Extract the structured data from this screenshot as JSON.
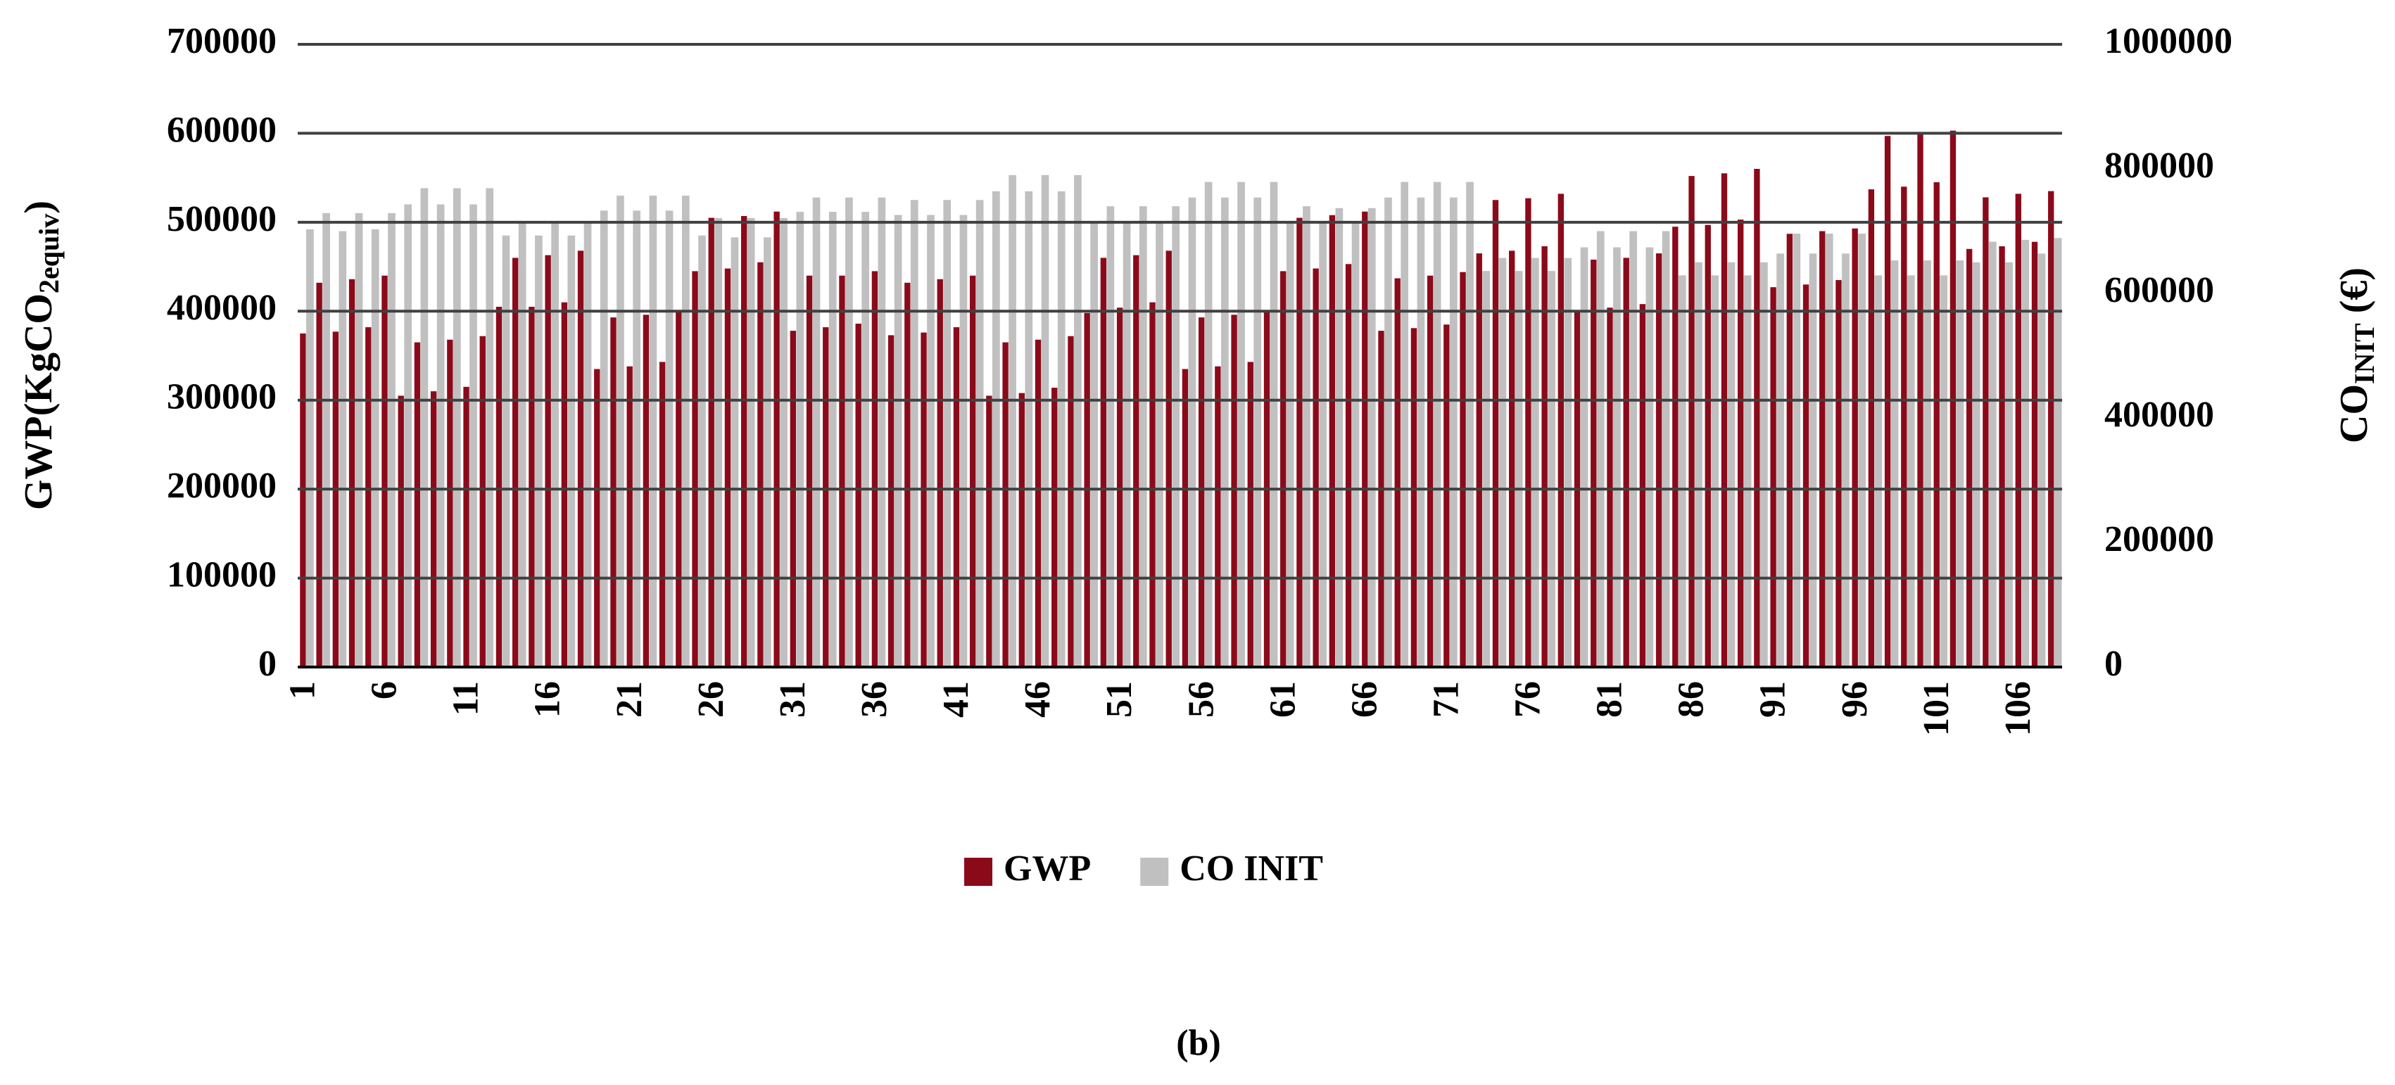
{
  "chart_data": {
    "type": "bar",
    "caption": "(b)",
    "y_label": [
      "GWP(KgCO",
      "2equiv",
      ")"
    ],
    "y2_label": [
      "CO",
      "INIT",
      " (€)"
    ],
    "categories": [
      "1",
      null,
      null,
      null,
      null,
      "6",
      null,
      null,
      null,
      null,
      "11",
      null,
      null,
      null,
      null,
      "16",
      null,
      null,
      null,
      null,
      "21",
      null,
      null,
      null,
      null,
      "26",
      null,
      null,
      null,
      null,
      "31",
      null,
      null,
      null,
      null,
      "36",
      null,
      null,
      null,
      null,
      "41",
      null,
      null,
      null,
      null,
      "46",
      null,
      null,
      null,
      null,
      "51",
      null,
      null,
      null,
      null,
      "56",
      null,
      null,
      null,
      null,
      "61",
      null,
      null,
      null,
      null,
      "66",
      null,
      null,
      null,
      null,
      "71",
      null,
      null,
      null,
      null,
      "76",
      null,
      null,
      null,
      null,
      "81",
      null,
      null,
      null,
      null,
      "86",
      null,
      null,
      null,
      null,
      "91",
      null,
      null,
      null,
      null,
      "96",
      null,
      null,
      null,
      null,
      "101",
      null,
      null,
      null,
      null,
      "106",
      null,
      null
    ],
    "series": [
      {
        "name": "GWP",
        "color": "#8b0a1a",
        "axis": "y",
        "values": [
          375000,
          432000,
          377000,
          436000,
          382000,
          440000,
          305000,
          365000,
          310000,
          368000,
          315000,
          372000,
          405000,
          460000,
          405000,
          463000,
          410000,
          468000,
          335000,
          393000,
          338000,
          396000,
          343000,
          400000,
          445000,
          505000,
          448000,
          507000,
          455000,
          512000,
          378000,
          440000,
          382000,
          440000,
          386000,
          445000,
          373000,
          432000,
          376000,
          436000,
          382000,
          440000,
          305000,
          365000,
          308000,
          368000,
          314000,
          372000,
          398000,
          460000,
          404000,
          463000,
          410000,
          468000,
          335000,
          393000,
          338000,
          396000,
          343000,
          400000,
          445000,
          505000,
          448000,
          508000,
          453000,
          512000,
          378000,
          437000,
          381000,
          440000,
          385000,
          444000,
          465000,
          525000,
          468000,
          527000,
          473000,
          532000,
          400000,
          458000,
          404000,
          460000,
          408000,
          465000,
          495000,
          552000,
          497000,
          555000,
          503000,
          560000,
          427000,
          487000,
          430000,
          490000,
          435000,
          493000,
          537000,
          597000,
          540000,
          600000,
          545000,
          603000,
          470000,
          528000,
          473000,
          532000,
          478000,
          535000
        ]
      },
      {
        "name": "CO INIT",
        "color": "#c0c0c0",
        "axis": "y2",
        "values": [
          703000,
          729000,
          700000,
          729000,
          703000,
          729000,
          743000,
          769000,
          743000,
          769000,
          743000,
          769000,
          693000,
          714000,
          693000,
          714000,
          693000,
          714000,
          733000,
          757000,
          733000,
          757000,
          733000,
          757000,
          693000,
          721000,
          690000,
          721000,
          690000,
          721000,
          731000,
          754000,
          731000,
          754000,
          731000,
          754000,
          726000,
          750000,
          726000,
          750000,
          726000,
          750000,
          764000,
          790000,
          764000,
          790000,
          764000,
          790000,
          714000,
          740000,
          714000,
          740000,
          714000,
          740000,
          754000,
          779000,
          754000,
          779000,
          754000,
          779000,
          714000,
          740000,
          714000,
          737000,
          714000,
          737000,
          754000,
          779000,
          754000,
          779000,
          754000,
          779000,
          636000,
          657000,
          636000,
          657000,
          636000,
          657000,
          674000,
          700000,
          674000,
          700000,
          674000,
          700000,
          629000,
          650000,
          629000,
          650000,
          629000,
          650000,
          664000,
          696000,
          664000,
          696000,
          664000,
          696000,
          629000,
          653000,
          629000,
          653000,
          629000,
          653000,
          650000,
          683000,
          650000,
          686000,
          664000,
          689000
        ]
      }
    ],
    "ylim": [
      0,
      700000
    ],
    "yticks": [
      0,
      100000,
      200000,
      300000,
      400000,
      500000,
      600000,
      700000
    ],
    "y2lim": [
      0,
      1000000
    ],
    "y2ticks": [
      0,
      200000,
      400000,
      600000,
      800000,
      1000000
    ],
    "grid": true,
    "legend": "bottom"
  }
}
